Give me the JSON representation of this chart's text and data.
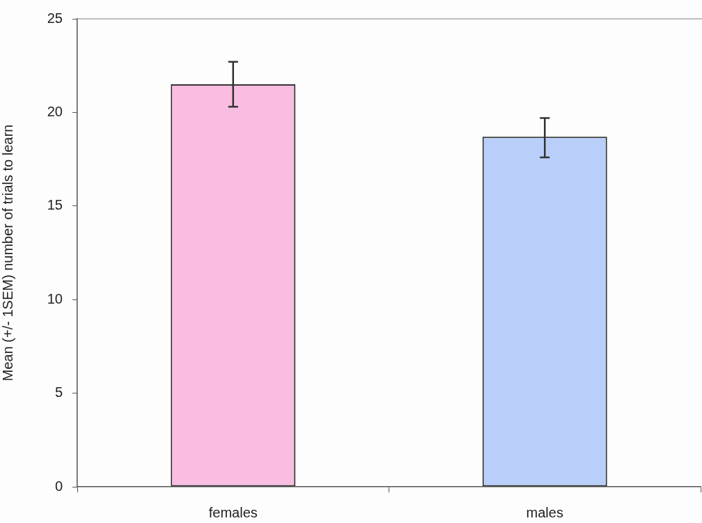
{
  "chart_data": {
    "type": "bar",
    "ylabel": "Mean (+/- 1SEM) number of trials to learn",
    "categories": [
      "females",
      "males"
    ],
    "values": [
      21.5,
      18.7
    ],
    "colors": [
      "#f8bde0",
      "#b9cff9"
    ],
    "errors": [
      [
        20.3,
        22.7
      ],
      [
        17.6,
        19.7
      ]
    ],
    "ylim": [
      0,
      25
    ],
    "yticks": [
      0,
      5,
      10,
      15,
      20,
      25
    ]
  }
}
